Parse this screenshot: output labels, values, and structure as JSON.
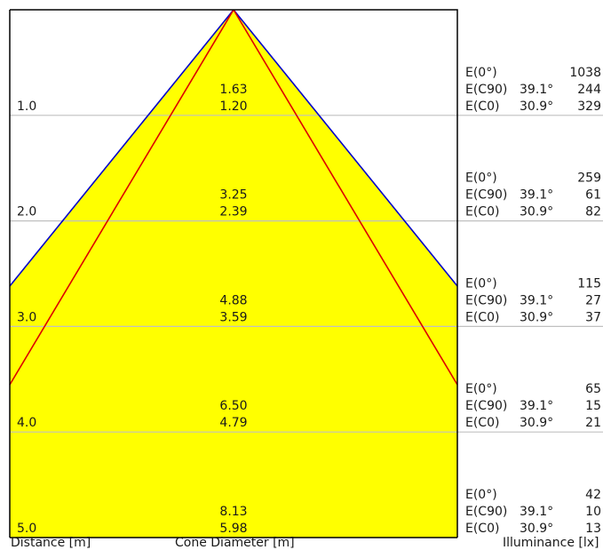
{
  "colors": {
    "cone_fill": "#ffff00",
    "outer_edge": "#0000cc",
    "inner_edge": "#dd0000",
    "grid": "#c0c0c0",
    "frame": "#000000"
  },
  "rows": [
    {
      "distance": "1.0",
      "cone_c90": "1.63",
      "cone_c0": "1.20",
      "e0_label": "E(0°)",
      "e0_value": "1038",
      "c90_label": "E(C90)",
      "c90_angle": "39.1°",
      "c90_value": "244",
      "c0_label": "E(C0)",
      "c0_angle": "30.9°",
      "c0_value": "329"
    },
    {
      "distance": "2.0",
      "cone_c90": "3.25",
      "cone_c0": "2.39",
      "e0_label": "E(0°)",
      "e0_value": "259",
      "c90_label": "E(C90)",
      "c90_angle": "39.1°",
      "c90_value": "61",
      "c0_label": "E(C0)",
      "c0_angle": "30.9°",
      "c0_value": "82"
    },
    {
      "distance": "3.0",
      "cone_c90": "4.88",
      "cone_c0": "3.59",
      "e0_label": "E(0°)",
      "e0_value": "115",
      "c90_label": "E(C90)",
      "c90_angle": "39.1°",
      "c90_value": "27",
      "c0_label": "E(C0)",
      "c0_angle": "30.9°",
      "c0_value": "37"
    },
    {
      "distance": "4.0",
      "cone_c90": "6.50",
      "cone_c0": "4.79",
      "e0_label": "E(0°)",
      "e0_value": "65",
      "c90_label": "E(C90)",
      "c90_angle": "39.1°",
      "c90_value": "15",
      "c0_label": "E(C0)",
      "c0_angle": "30.9°",
      "c0_value": "21"
    },
    {
      "distance": "5.0",
      "cone_c90": "8.13",
      "cone_c0": "5.98",
      "e0_label": "E(0°)",
      "e0_value": "42",
      "c90_label": "E(C90)",
      "c90_angle": "39.1°",
      "c90_value": "10",
      "c0_label": "E(C0)",
      "c0_angle": "30.9°",
      "c0_value": "13"
    }
  ],
  "footer": {
    "distance_label": "Distance [m]",
    "cone_label": "Cone Diameter [m]",
    "illuminance_label": "Illuminance [lx]"
  }
}
